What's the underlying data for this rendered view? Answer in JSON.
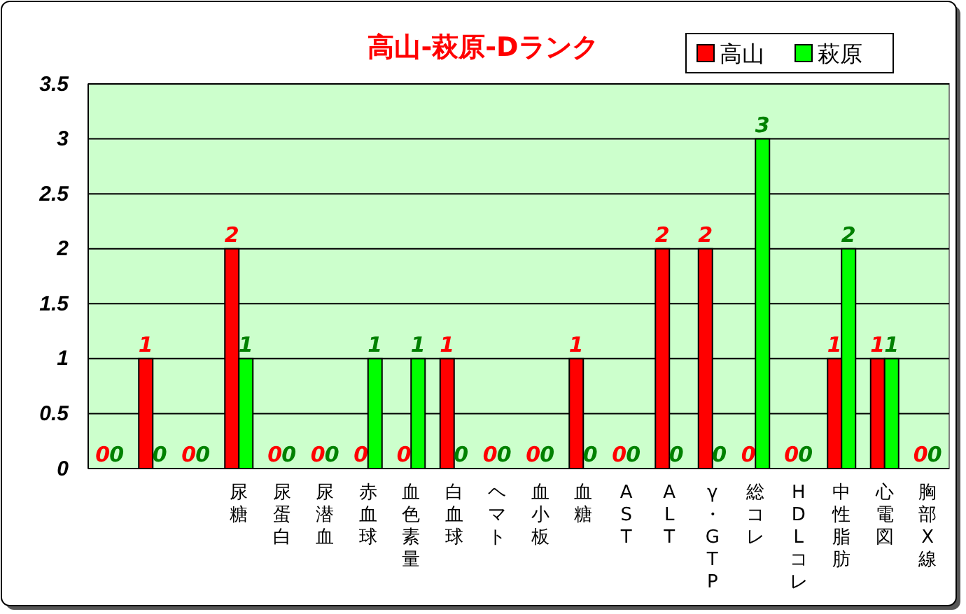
{
  "chart_data": {
    "type": "bar",
    "title": "高山-萩原-Dランク",
    "categories": [
      null,
      null,
      null,
      "尿糖",
      "尿蛋白",
      "尿潜血",
      "赤血球",
      "血色素量",
      "白血球",
      "ヘマト",
      "血小板",
      "血糖",
      "AST",
      "ALT",
      "γ・GTP",
      "総コレ",
      "HDLコレ",
      "中性脂肪",
      "心電図",
      "胸部X線"
    ],
    "series": [
      {
        "name": "高山",
        "color": "#ff0000",
        "values": [
          0,
          1,
          0,
          2,
          0,
          0,
          0,
          0,
          1,
          0,
          0,
          1,
          0,
          2,
          2,
          0,
          0,
          1,
          1,
          0
        ]
      },
      {
        "name": "萩原",
        "color": "#00ff00",
        "values": [
          0,
          0,
          0,
          1,
          0,
          0,
          1,
          1,
          0,
          0,
          0,
          0,
          0,
          0,
          0,
          3,
          0,
          2,
          1,
          0
        ]
      }
    ],
    "ylim": [
      0,
      3.5
    ],
    "yticks": [
      0,
      0.5,
      1,
      1.5,
      2,
      2.5,
      3,
      3.5
    ],
    "grid": "y",
    "legend": "top right",
    "data_labels": true
  }
}
